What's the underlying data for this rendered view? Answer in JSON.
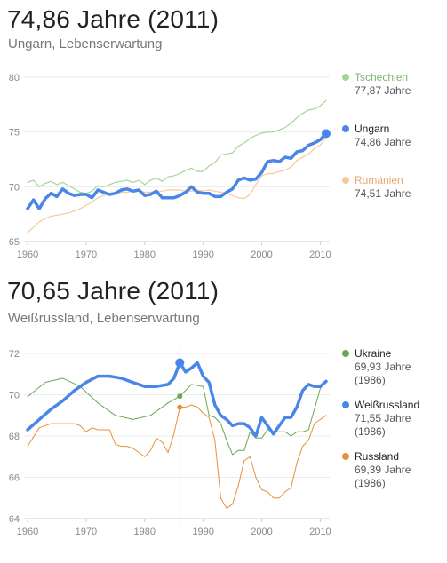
{
  "charts": [
    {
      "headline": "74,86 Jahre (2011)",
      "subtitle": "Ungarn, Lebenserwartung",
      "legend": [
        {
          "name": "Tschechien",
          "value": "77,87 Jahre",
          "color": "#a5d596"
        },
        {
          "name": "Ungarn",
          "value": "74,86 Jahre",
          "color": "#4a86e8"
        },
        {
          "name": "Rumänien",
          "value": "74,51 Jahre",
          "color": "#f7c99a"
        }
      ]
    },
    {
      "headline": "70,65 Jahre (2011)",
      "subtitle": "Weißrussland, Lebenserwartung",
      "legend": [
        {
          "name": "Ukraine",
          "value": "69,93 Jahre",
          "note": "(1986)",
          "color": "#6aa84f"
        },
        {
          "name": "Weißrussland",
          "value": "71,55 Jahre",
          "note": "(1986)",
          "color": "#4a86e8"
        },
        {
          "name": "Russland",
          "value": "69,39 Jahre",
          "note": "(1986)",
          "color": "#e69138"
        }
      ]
    }
  ],
  "chart_data": [
    {
      "type": "line",
      "title": "74,86 Jahre (2011)",
      "subtitle": "Ungarn, Lebenserwartung",
      "xlim": [
        1960,
        2011
      ],
      "ylim": [
        65,
        80
      ],
      "xticks": [
        1960,
        1970,
        1980,
        1990,
        2000,
        2010
      ],
      "yticks": [
        65,
        70,
        75,
        80
      ],
      "grid": true,
      "legend_position": "right",
      "series": [
        {
          "name": "Tschechien",
          "color": "#a5d596",
          "highlight": false,
          "x": [
            1960,
            1961,
            1962,
            1963,
            1964,
            1965,
            1966,
            1967,
            1968,
            1969,
            1970,
            1971,
            1972,
            1973,
            1974,
            1975,
            1976,
            1977,
            1978,
            1979,
            1980,
            1981,
            1982,
            1983,
            1984,
            1985,
            1986,
            1987,
            1988,
            1989,
            1990,
            1991,
            1992,
            1993,
            1994,
            1995,
            1996,
            1997,
            1998,
            1999,
            2000,
            2001,
            2002,
            2003,
            2004,
            2005,
            2006,
            2007,
            2008,
            2009,
            2010,
            2011
          ],
          "values": [
            70.4,
            70.6,
            70.0,
            70.3,
            70.5,
            70.2,
            70.4,
            70.1,
            69.8,
            69.5,
            69.4,
            69.6,
            70.1,
            70.0,
            70.2,
            70.4,
            70.5,
            70.6,
            70.4,
            70.6,
            70.2,
            70.6,
            70.8,
            70.5,
            70.9,
            71.0,
            71.2,
            71.5,
            71.7,
            71.4,
            71.4,
            71.9,
            72.2,
            72.9,
            73.0,
            73.1,
            73.7,
            74.0,
            74.4,
            74.7,
            74.9,
            75.0,
            75.0,
            75.2,
            75.4,
            75.8,
            76.3,
            76.7,
            77.0,
            77.1,
            77.4,
            77.87
          ]
        },
        {
          "name": "Ungarn",
          "color": "#4a86e8",
          "highlight": true,
          "x": [
            1960,
            1961,
            1962,
            1963,
            1964,
            1965,
            1966,
            1967,
            1968,
            1969,
            1970,
            1971,
            1972,
            1973,
            1974,
            1975,
            1976,
            1977,
            1978,
            1979,
            1980,
            1981,
            1982,
            1983,
            1984,
            1985,
            1986,
            1987,
            1988,
            1989,
            1990,
            1991,
            1992,
            1993,
            1994,
            1995,
            1996,
            1997,
            1998,
            1999,
            2000,
            2001,
            2002,
            2003,
            2004,
            2005,
            2006,
            2007,
            2008,
            2009,
            2010,
            2011
          ],
          "values": [
            68.0,
            68.8,
            68.0,
            68.9,
            69.4,
            69.1,
            69.8,
            69.4,
            69.2,
            69.3,
            69.3,
            69.0,
            69.7,
            69.5,
            69.3,
            69.4,
            69.7,
            69.8,
            69.6,
            69.7,
            69.2,
            69.3,
            69.6,
            69.0,
            69.0,
            69.0,
            69.2,
            69.5,
            70.0,
            69.5,
            69.4,
            69.4,
            69.1,
            69.1,
            69.5,
            69.8,
            70.6,
            70.8,
            70.6,
            70.7,
            71.3,
            72.3,
            72.4,
            72.3,
            72.7,
            72.6,
            73.2,
            73.3,
            73.8,
            74.0,
            74.3,
            74.86
          ]
        },
        {
          "name": "Rumänien",
          "color": "#f7c99a",
          "highlight": false,
          "x": [
            1960,
            1961,
            1962,
            1963,
            1964,
            1965,
            1966,
            1967,
            1968,
            1969,
            1970,
            1971,
            1972,
            1973,
            1974,
            1975,
            1976,
            1977,
            1978,
            1979,
            1980,
            1981,
            1982,
            1983,
            1984,
            1985,
            1986,
            1987,
            1988,
            1989,
            1990,
            1991,
            1992,
            1993,
            1994,
            1995,
            1996,
            1997,
            1998,
            1999,
            2000,
            2001,
            2002,
            2003,
            2004,
            2005,
            2006,
            2007,
            2008,
            2009,
            2010,
            2011
          ],
          "values": [
            65.8,
            66.3,
            66.8,
            67.1,
            67.3,
            67.4,
            67.5,
            67.6,
            67.8,
            68.0,
            68.3,
            68.6,
            69.0,
            69.2,
            69.3,
            69.4,
            69.5,
            69.5,
            69.6,
            69.6,
            69.5,
            69.5,
            69.6,
            69.6,
            69.7,
            69.7,
            69.7,
            69.6,
            69.6,
            69.7,
            69.6,
            69.7,
            69.6,
            69.5,
            69.4,
            69.2,
            69.0,
            68.9,
            69.3,
            70.2,
            71.0,
            71.2,
            71.2,
            71.4,
            71.5,
            71.8,
            72.4,
            72.7,
            73.0,
            73.5,
            73.8,
            74.51
          ]
        }
      ]
    },
    {
      "type": "line",
      "title": "70,65 Jahre (2011)",
      "subtitle": "Weißrussland, Lebenserwartung",
      "xlim": [
        1960,
        2011
      ],
      "ylim": [
        64,
        72
      ],
      "xticks": [
        1960,
        1970,
        1980,
        1990,
        2000,
        2010
      ],
      "yticks": [
        64,
        66,
        68,
        70,
        72
      ],
      "grid": true,
      "legend_position": "right",
      "marker_year": 1986,
      "series": [
        {
          "name": "Ukraine",
          "color": "#6aa84f",
          "highlight": false,
          "x": [
            1960,
            1963,
            1966,
            1969,
            1972,
            1975,
            1978,
            1981,
            1984,
            1986,
            1988,
            1990,
            1991,
            1992,
            1993,
            1994,
            1995,
            1996,
            1997,
            1998,
            1999,
            2000,
            2001,
            2002,
            2003,
            2004,
            2005,
            2006,
            2007,
            2008,
            2009,
            2010,
            2011
          ],
          "values": [
            69.9,
            70.6,
            70.8,
            70.4,
            69.6,
            69.0,
            68.8,
            69.0,
            69.6,
            69.93,
            70.5,
            70.4,
            69.0,
            68.9,
            68.6,
            67.8,
            67.1,
            67.3,
            67.3,
            68.2,
            67.9,
            67.9,
            68.3,
            68.2,
            68.2,
            68.2,
            68.0,
            68.2,
            68.2,
            68.3,
            69.3,
            70.3,
            70.7
          ]
        },
        {
          "name": "Weißrussland",
          "color": "#4a86e8",
          "highlight": true,
          "x": [
            1960,
            1962,
            1964,
            1966,
            1968,
            1970,
            1972,
            1974,
            1976,
            1978,
            1980,
            1982,
            1984,
            1985,
            1986,
            1987,
            1988,
            1989,
            1990,
            1991,
            1992,
            1993,
            1994,
            1995,
            1996,
            1997,
            1998,
            1999,
            2000,
            2001,
            2002,
            2003,
            2004,
            2005,
            2006,
            2007,
            2008,
            2009,
            2010,
            2011
          ],
          "values": [
            68.3,
            68.8,
            69.3,
            69.7,
            70.2,
            70.6,
            70.9,
            70.9,
            70.8,
            70.6,
            70.4,
            70.4,
            70.5,
            70.8,
            71.55,
            71.1,
            71.3,
            71.55,
            70.9,
            70.6,
            69.5,
            69.0,
            68.8,
            68.5,
            68.6,
            68.6,
            68.4,
            68.0,
            68.9,
            68.5,
            68.1,
            68.5,
            68.9,
            68.9,
            69.4,
            70.2,
            70.5,
            70.4,
            70.4,
            70.65
          ]
        },
        {
          "name": "Russland",
          "color": "#e69138",
          "highlight": false,
          "x": [
            1960,
            1962,
            1964,
            1966,
            1968,
            1969,
            1970,
            1971,
            1972,
            1973,
            1974,
            1975,
            1976,
            1977,
            1978,
            1979,
            1980,
            1981,
            1982,
            1983,
            1984,
            1985,
            1986,
            1987,
            1988,
            1989,
            1990,
            1991,
            1992,
            1993,
            1994,
            1995,
            1996,
            1997,
            1998,
            1999,
            2000,
            2001,
            2002,
            2003,
            2004,
            2005,
            2006,
            2007,
            2008,
            2009,
            2010,
            2011
          ],
          "values": [
            67.5,
            68.4,
            68.6,
            68.6,
            68.6,
            68.5,
            68.2,
            68.4,
            68.3,
            68.3,
            68.3,
            67.6,
            67.5,
            67.5,
            67.4,
            67.2,
            67.0,
            67.3,
            67.9,
            67.7,
            67.2,
            68.1,
            69.39,
            69.4,
            69.5,
            69.4,
            69.1,
            68.9,
            67.8,
            65.0,
            64.5,
            64.7,
            65.6,
            66.8,
            67.0,
            66.0,
            65.4,
            65.3,
            65.0,
            65.0,
            65.3,
            65.5,
            66.7,
            67.5,
            67.8,
            68.6,
            68.8,
            69.0
          ]
        }
      ]
    }
  ]
}
